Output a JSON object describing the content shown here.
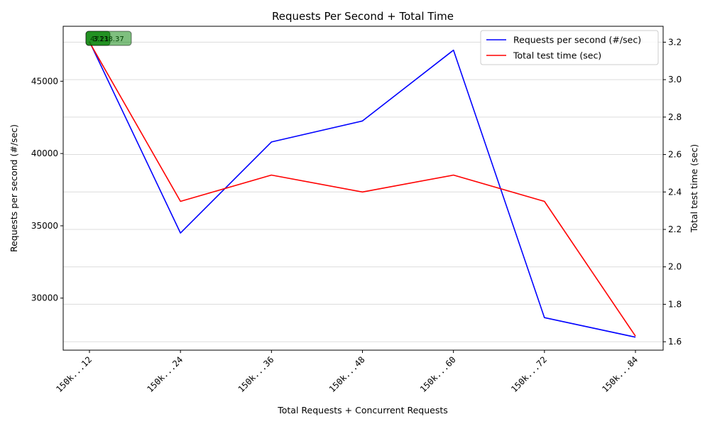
{
  "chart_data": {
    "type": "line",
    "title": "Requests Per Second + Total Time",
    "xlabel": "Total Requests + Concurrent Requests",
    "categories": [
      "150k...12",
      "150k...24",
      "150k...36",
      "150k...48",
      "150k...60",
      "150k...72",
      "150k...84"
    ],
    "series": [
      {
        "name": "Requests per second (#/sec)",
        "axis": "left",
        "color": "#0000ff",
        "values": [
          47750,
          34500,
          40800,
          42250,
          47150,
          28650,
          27300
        ]
      },
      {
        "name": "Total test time (sec)",
        "axis": "right",
        "color": "#ff0000",
        "values": [
          3.2,
          2.35,
          2.49,
          2.4,
          2.49,
          2.35,
          1.63
        ]
      }
    ],
    "y_left": {
      "label": "Requests per second (#/sec)",
      "color": "#0000ff",
      "lim": [
        26400,
        48800
      ],
      "ticks": [
        30000,
        35000,
        40000,
        45000
      ]
    },
    "y_right": {
      "label": "Total test time (sec)",
      "color": "#ff0000",
      "lim": [
        1.555,
        3.285
      ],
      "ticks": [
        1.6,
        1.8,
        2.0,
        2.2,
        2.4,
        2.6,
        2.8,
        3.0,
        3.2
      ],
      "tick_labels": [
        "1.6",
        "1.8",
        "2.0",
        "2.2",
        "2.4",
        "2.6",
        "2.8",
        "3.0",
        "3.2"
      ]
    },
    "grid": "horizontal",
    "legend": "top-right",
    "annotations": [
      {
        "text": "3.21",
        "color": "#008000"
      },
      {
        "text": "47138.37",
        "color": "#008000"
      }
    ]
  }
}
